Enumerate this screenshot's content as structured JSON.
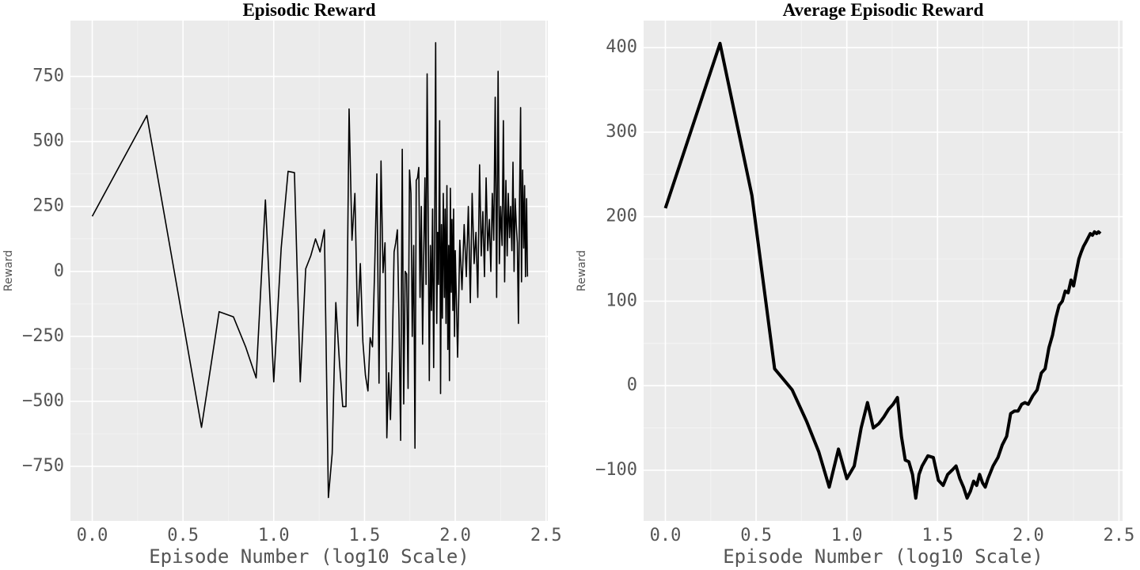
{
  "chart_data": [
    {
      "type": "line",
      "title": "Episodic Reward",
      "xlabel": "Episode Number (log10 Scale)",
      "ylabel": "Reward",
      "color": "#000000",
      "line_width": 1.6,
      "grid": true,
      "minor_grid": true,
      "xlim": [
        -0.12,
        2.51
      ],
      "ylim": [
        -960,
        965
      ],
      "xticks": [
        {
          "value": 0,
          "label": "0.0"
        },
        {
          "value": 0.5,
          "label": "0.5"
        },
        {
          "value": 1,
          "label": "1.0"
        },
        {
          "value": 1.5,
          "label": "1.5"
        },
        {
          "value": 2,
          "label": "2.0"
        },
        {
          "value": 2.5,
          "label": "2.5"
        }
      ],
      "yticks": [
        {
          "value": -750,
          "label": "−750"
        },
        {
          "value": -500,
          "label": "−500"
        },
        {
          "value": -250,
          "label": "−250"
        },
        0,
        250,
        500,
        750
      ],
      "x": [
        0,
        0.301,
        0.477,
        0.602,
        0.699,
        0.778,
        0.845,
        0.903,
        0.954,
        1.0,
        1.041,
        1.079,
        1.114,
        1.146,
        1.176,
        1.204,
        1.23,
        1.255,
        1.279,
        1.301,
        1.322,
        1.342,
        1.362,
        1.38,
        1.398,
        1.415,
        1.431,
        1.447,
        1.462,
        1.477,
        1.491,
        1.505,
        1.519,
        1.531,
        1.544,
        1.556,
        1.568,
        1.58,
        1.591,
        1.602,
        1.613,
        1.623,
        1.633,
        1.643,
        1.653,
        1.663,
        1.672,
        1.681,
        1.69,
        1.699,
        1.708,
        1.716,
        1.724,
        1.732,
        1.74,
        1.748,
        1.756,
        1.763,
        1.771,
        1.778,
        1.785,
        1.792,
        1.799,
        1.806,
        1.813,
        1.82,
        1.826,
        1.833,
        1.839,
        1.845,
        1.851,
        1.857,
        1.863,
        1.869,
        1.875,
        1.881,
        1.886,
        1.892,
        1.898,
        1.903,
        1.908,
        1.914,
        1.919,
        1.924,
        1.929,
        1.934,
        1.94,
        1.944,
        1.949,
        1.954,
        1.959,
        1.964,
        1.968,
        1.973,
        1.978,
        1.982,
        1.987,
        1.991,
        1.996,
        2.0,
        2.013,
        2.025,
        2.037,
        2.049,
        2.061,
        2.072,
        2.083,
        2.093,
        2.104,
        2.114,
        2.124,
        2.134,
        2.143,
        2.152,
        2.161,
        2.17,
        2.179,
        2.188,
        2.196,
        2.204,
        2.212,
        2.22,
        2.228,
        2.236,
        2.243,
        2.25,
        2.258,
        2.265,
        2.272,
        2.279,
        2.286,
        2.292,
        2.299,
        2.305,
        2.312,
        2.318,
        2.324,
        2.33,
        2.336,
        2.342,
        2.348,
        2.354,
        2.36,
        2.365,
        2.371,
        2.377,
        2.382,
        2.387,
        2.393,
        2.398
      ],
      "values": [
        212,
        600,
        -100,
        -600,
        -155,
        -175,
        -290,
        -410,
        275,
        -425,
        90,
        385,
        380,
        -425,
        10,
        60,
        125,
        75,
        160,
        -870,
        -700,
        -120,
        -350,
        -520,
        -520,
        625,
        120,
        300,
        -210,
        30,
        -270,
        -400,
        -460,
        -255,
        -290,
        10,
        375,
        -430,
        425,
        -5,
        110,
        -640,
        -390,
        -570,
        -300,
        75,
        110,
        160,
        -180,
        -650,
        470,
        -510,
        0,
        -10,
        -450,
        390,
        300,
        -250,
        100,
        -680,
        350,
        360,
        400,
        -100,
        250,
        -280,
        50,
        360,
        -50,
        760,
        200,
        -420,
        100,
        -150,
        240,
        -370,
        80,
        880,
        -200,
        150,
        -50,
        580,
        -470,
        180,
        -180,
        300,
        -100,
        240,
        -200,
        330,
        -300,
        100,
        -420,
        320,
        -80,
        200,
        -150,
        240,
        -250,
        80,
        -330,
        120,
        -70,
        180,
        -20,
        250,
        -120,
        300,
        30,
        150,
        -100,
        410,
        60,
        230,
        -20,
        360,
        80,
        200,
        0,
        300,
        120,
        670,
        -100,
        770,
        30,
        250,
        100,
        580,
        -40,
        350,
        60,
        300,
        130,
        250,
        80,
        420,
        0,
        280,
        180,
        110,
        -200,
        270,
        630,
        -40,
        390,
        90,
        330,
        -20,
        280,
        -20
      ]
    },
    {
      "type": "line",
      "title": "Average Episodic Reward",
      "xlabel": "Episode Number (log10 Scale)",
      "ylabel": "Reward",
      "color": "#000000",
      "line_width": 4,
      "grid": true,
      "minor_grid": true,
      "xlim": [
        -0.12,
        2.52
      ],
      "ylim": [
        -160,
        432
      ],
      "xticks": [
        {
          "value": 0,
          "label": "0.0"
        },
        {
          "value": 0.5,
          "label": "0.5"
        },
        {
          "value": 1,
          "label": "1.0"
        },
        {
          "value": 1.5,
          "label": "1.5"
        },
        {
          "value": 2,
          "label": "2.0"
        },
        {
          "value": 2.5,
          "label": "2.5"
        }
      ],
      "yticks": [
        {
          "value": -100,
          "label": "−100"
        },
        0,
        100,
        200,
        300,
        400
      ],
      "x": [
        0,
        0.301,
        0.477,
        0.602,
        0.699,
        0.778,
        0.845,
        0.903,
        0.954,
        1.0,
        1.041,
        1.079,
        1.114,
        1.146,
        1.176,
        1.204,
        1.23,
        1.255,
        1.279,
        1.301,
        1.322,
        1.342,
        1.362,
        1.38,
        1.398,
        1.415,
        1.447,
        1.477,
        1.505,
        1.531,
        1.556,
        1.58,
        1.602,
        1.623,
        1.643,
        1.663,
        1.681,
        1.699,
        1.716,
        1.732,
        1.748,
        1.763,
        1.778,
        1.806,
        1.833,
        1.857,
        1.881,
        1.903,
        1.924,
        1.944,
        1.964,
        1.982,
        2.0,
        2.025,
        2.049,
        2.072,
        2.093,
        2.114,
        2.134,
        2.152,
        2.17,
        2.188,
        2.204,
        2.22,
        2.236,
        2.25,
        2.265,
        2.279,
        2.292,
        2.305,
        2.318,
        2.33,
        2.342,
        2.354,
        2.365,
        2.377,
        2.387,
        2.398
      ],
      "values": [
        210,
        405,
        225,
        20,
        -5,
        -42,
        -78,
        -120,
        -75,
        -110,
        -95,
        -50,
        -20,
        -50,
        -45,
        -37,
        -28,
        -22,
        -14,
        -60,
        -88,
        -90,
        -105,
        -133,
        -105,
        -95,
        -83,
        -85,
        -112,
        -118,
        -105,
        -100,
        -95,
        -110,
        -120,
        -133,
        -125,
        -113,
        -118,
        -105,
        -115,
        -120,
        -110,
        -95,
        -85,
        -70,
        -60,
        -33,
        -30,
        -30,
        -22,
        -20,
        -22,
        -12,
        -5,
        15,
        20,
        45,
        60,
        80,
        95,
        100,
        112,
        110,
        125,
        118,
        135,
        150,
        158,
        165,
        170,
        175,
        180,
        178,
        182,
        180,
        182,
        180
      ]
    }
  ]
}
